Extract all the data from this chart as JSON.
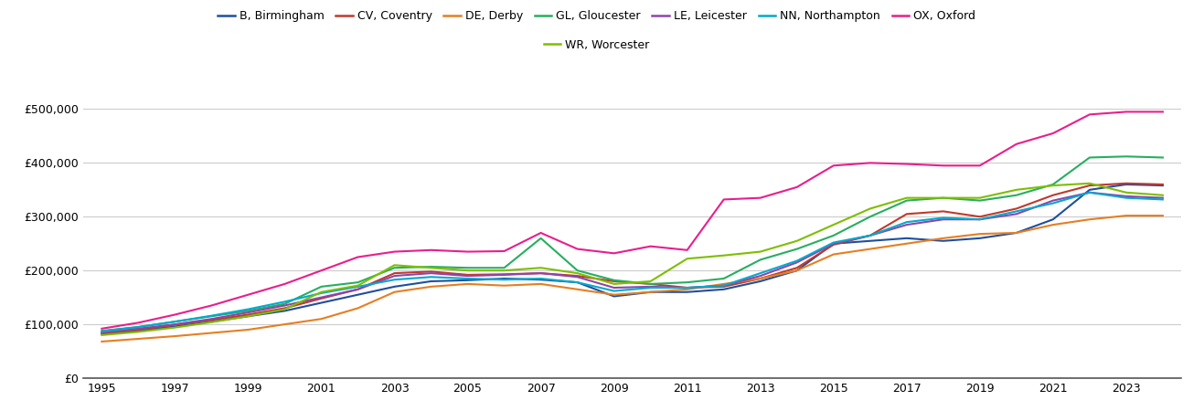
{
  "years": [
    1995,
    1996,
    1997,
    1998,
    1999,
    2000,
    2001,
    2002,
    2003,
    2004,
    2005,
    2006,
    2007,
    2008,
    2009,
    2010,
    2011,
    2012,
    2013,
    2014,
    2015,
    2016,
    2017,
    2018,
    2019,
    2020,
    2021,
    2022,
    2023,
    2024
  ],
  "series_order": [
    "B, Birmingham",
    "CV, Coventry",
    "DE, Derby",
    "GL, Gloucester",
    "LE, Leicester",
    "NN, Northampton",
    "OX, Oxford",
    "WR, Worcester"
  ],
  "series": {
    "B, Birmingham": {
      "color": "#1f4e9e",
      "values": [
        82000,
        88000,
        96000,
        105000,
        115000,
        125000,
        140000,
        155000,
        170000,
        180000,
        182000,
        185000,
        183000,
        178000,
        152000,
        160000,
        160000,
        165000,
        180000,
        200000,
        250000,
        255000,
        260000,
        255000,
        260000,
        270000,
        295000,
        350000,
        360000,
        358000
      ]
    },
    "CV, Coventry": {
      "color": "#c0392b",
      "values": [
        83000,
        90000,
        99000,
        108000,
        118000,
        130000,
        148000,
        165000,
        195000,
        198000,
        192000,
        193000,
        195000,
        190000,
        180000,
        175000,
        168000,
        170000,
        185000,
        205000,
        248000,
        265000,
        305000,
        310000,
        300000,
        315000,
        340000,
        358000,
        362000,
        360000
      ]
    },
    "DE, Derby": {
      "color": "#e67e22",
      "values": [
        68000,
        73000,
        78000,
        84000,
        90000,
        100000,
        110000,
        130000,
        160000,
        170000,
        175000,
        172000,
        175000,
        165000,
        155000,
        160000,
        165000,
        175000,
        185000,
        200000,
        230000,
        240000,
        250000,
        260000,
        268000,
        270000,
        285000,
        295000,
        302000,
        302000
      ]
    },
    "GL, Gloucester": {
      "color": "#27ae60",
      "values": [
        88000,
        95000,
        105000,
        115000,
        125000,
        138000,
        170000,
        178000,
        205000,
        207000,
        205000,
        205000,
        260000,
        200000,
        182000,
        175000,
        178000,
        185000,
        220000,
        240000,
        265000,
        300000,
        330000,
        335000,
        330000,
        340000,
        360000,
        410000,
        412000,
        410000
      ]
    },
    "LE, Leicester": {
      "color": "#8e44ad",
      "values": [
        85000,
        92000,
        100000,
        110000,
        122000,
        135000,
        150000,
        165000,
        190000,
        195000,
        190000,
        192000,
        195000,
        188000,
        168000,
        170000,
        168000,
        172000,
        190000,
        215000,
        250000,
        265000,
        285000,
        295000,
        295000,
        305000,
        330000,
        345000,
        338000,
        335000
      ]
    },
    "NN, Northampton": {
      "color": "#00aacc",
      "values": [
        87000,
        95000,
        105000,
        116000,
        128000,
        142000,
        158000,
        170000,
        183000,
        188000,
        185000,
        183000,
        185000,
        178000,
        162000,
        168000,
        168000,
        172000,
        195000,
        218000,
        252000,
        265000,
        290000,
        298000,
        295000,
        310000,
        325000,
        345000,
        335000,
        332000
      ]
    },
    "OX, Oxford": {
      "color": "#e91e8c",
      "values": [
        92000,
        103000,
        118000,
        135000,
        155000,
        175000,
        200000,
        225000,
        235000,
        238000,
        235000,
        236000,
        270000,
        240000,
        232000,
        245000,
        238000,
        332000,
        335000,
        355000,
        395000,
        400000,
        398000,
        395000,
        395000,
        435000,
        455000,
        490000,
        495000,
        495000
      ]
    },
    "WR, Worcester": {
      "color": "#7dbe00",
      "values": [
        80000,
        86000,
        94000,
        104000,
        115000,
        128000,
        160000,
        172000,
        210000,
        205000,
        200000,
        200000,
        205000,
        195000,
        175000,
        180000,
        222000,
        228000,
        235000,
        255000,
        285000,
        315000,
        335000,
        335000,
        335000,
        350000,
        358000,
        362000,
        345000,
        340000
      ]
    }
  },
  "ylim": [
    0,
    550000
  ],
  "yticks": [
    0,
    100000,
    200000,
    300000,
    400000,
    500000
  ],
  "ytick_labels": [
    "£0",
    "£100,000",
    "£200,000",
    "£300,000",
    "£400,000",
    "£500,000"
  ],
  "xticks": [
    1995,
    1997,
    1999,
    2001,
    2003,
    2005,
    2007,
    2009,
    2011,
    2013,
    2015,
    2017,
    2019,
    2021,
    2023
  ],
  "background_color": "#ffffff",
  "grid_color": "#cccccc",
  "line_width": 1.5,
  "legend_fontsize": 9,
  "tick_fontsize": 9,
  "legend_row1": [
    "B, Birmingham",
    "CV, Coventry",
    "DE, Derby",
    "GL, Gloucester",
    "LE, Leicester",
    "NN, Northampton",
    "OX, Oxford"
  ],
  "legend_row2": [
    "WR, Worcester"
  ]
}
